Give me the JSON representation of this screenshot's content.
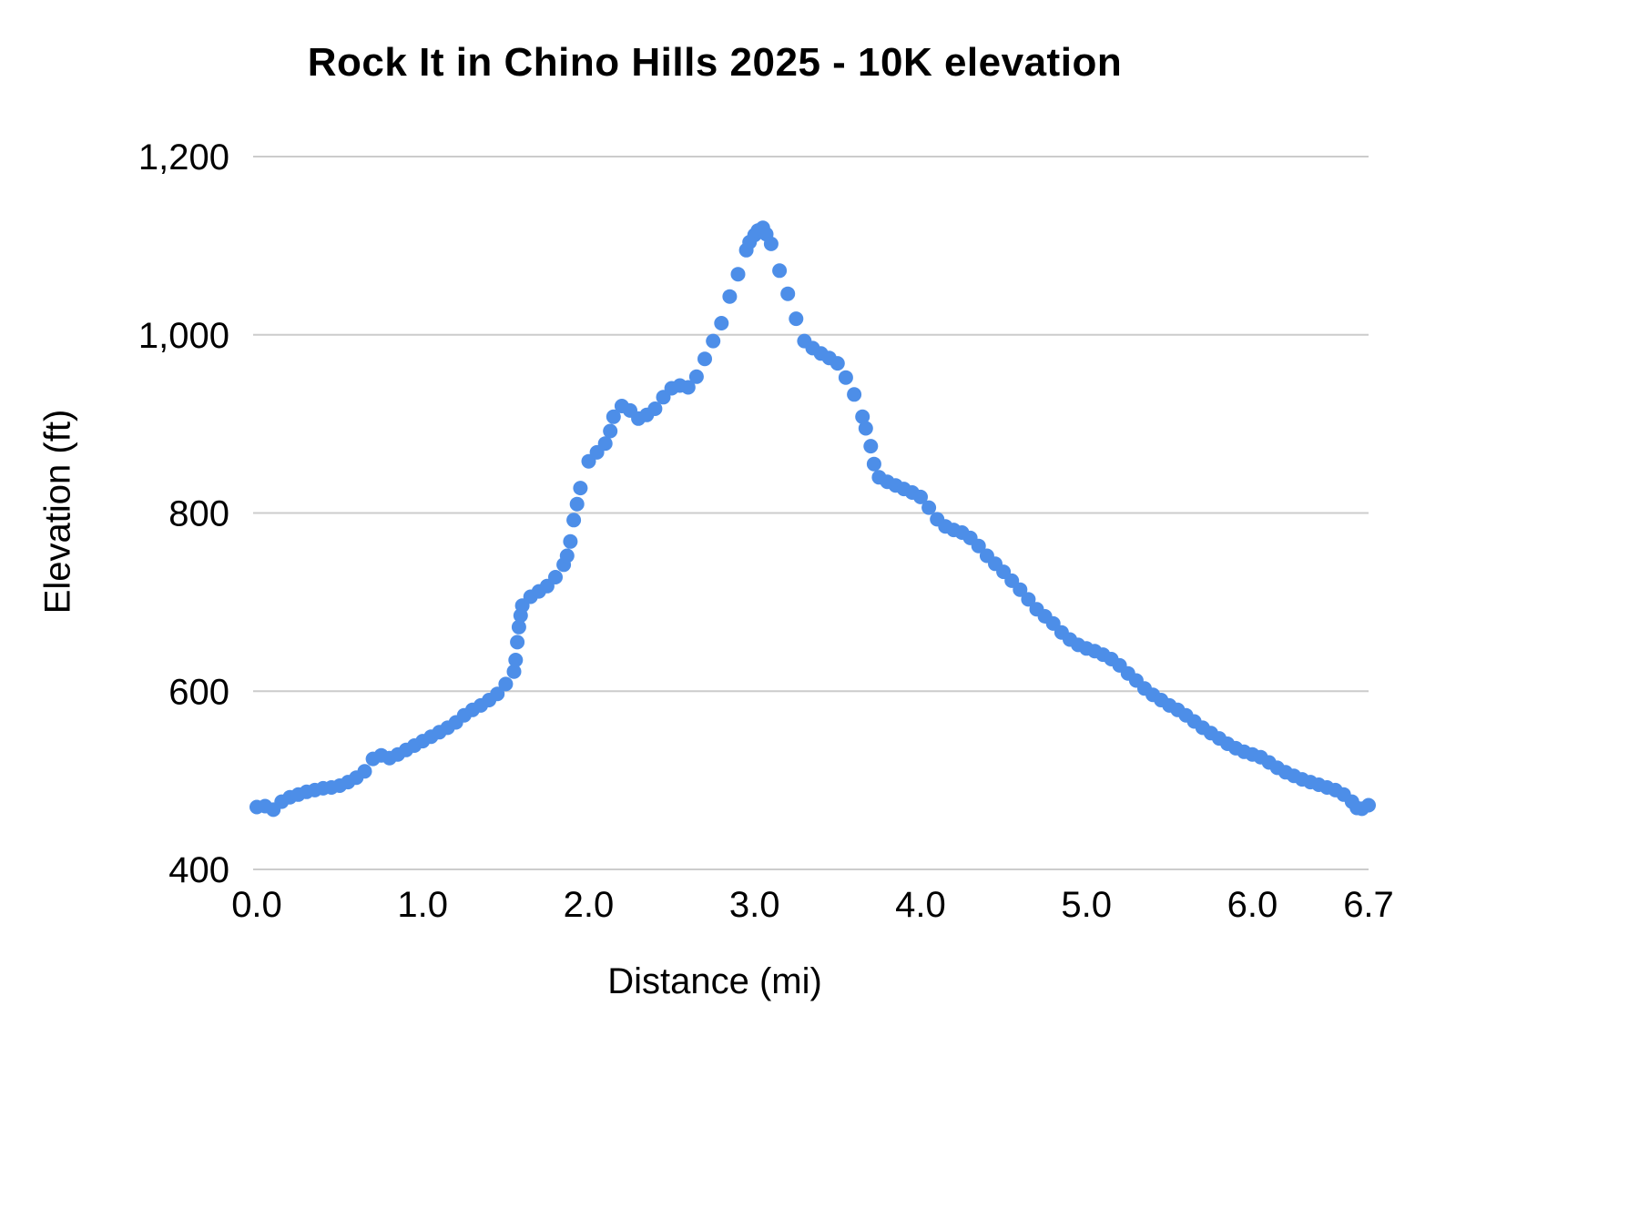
{
  "chart_data": {
    "type": "scatter",
    "title": "Rock It in Chino Hills 2025 - 10K elevation",
    "xlabel": "Distance (mi)",
    "ylabel": "Elevation (ft)",
    "xlim": [
      0,
      6.7
    ],
    "ylim": [
      400,
      1200
    ],
    "legend": "none",
    "grid": "horizontal-only",
    "layout_hints": "dense round blue markers forming a continuous elevation profile line; horizontal gray gridlines at each y tick; no vertical gridlines",
    "colors": {
      "series": "#4d8ee8",
      "gridline": "#cccccc",
      "text": "#000000"
    },
    "x_ticks": [
      {
        "value": 0.0,
        "label": "0.0"
      },
      {
        "value": 1.0,
        "label": "1.0"
      },
      {
        "value": 2.0,
        "label": "2.0"
      },
      {
        "value": 3.0,
        "label": "3.0"
      },
      {
        "value": 4.0,
        "label": "4.0"
      },
      {
        "value": 5.0,
        "label": "5.0"
      },
      {
        "value": 6.0,
        "label": "6.0"
      },
      {
        "value": 6.7,
        "label": "6.7"
      }
    ],
    "y_ticks": [
      {
        "value": 400,
        "label": "400"
      },
      {
        "value": 600,
        "label": "600"
      },
      {
        "value": 800,
        "label": "800"
      },
      {
        "value": 1000,
        "label": "1,000"
      },
      {
        "value": 1200,
        "label": "1,200"
      }
    ],
    "series_name": "Elevation",
    "points": [
      [
        0.0,
        470
      ],
      [
        0.05,
        471
      ],
      [
        0.1,
        467
      ],
      [
        0.15,
        476
      ],
      [
        0.2,
        481
      ],
      [
        0.25,
        484
      ],
      [
        0.3,
        487
      ],
      [
        0.35,
        489
      ],
      [
        0.4,
        491
      ],
      [
        0.45,
        492
      ],
      [
        0.5,
        494
      ],
      [
        0.55,
        498
      ],
      [
        0.6,
        503
      ],
      [
        0.65,
        510
      ],
      [
        0.7,
        524
      ],
      [
        0.75,
        528
      ],
      [
        0.8,
        525
      ],
      [
        0.85,
        529
      ],
      [
        0.9,
        534
      ],
      [
        0.95,
        539
      ],
      [
        1.0,
        544
      ],
      [
        1.05,
        549
      ],
      [
        1.1,
        554
      ],
      [
        1.15,
        559
      ],
      [
        1.2,
        565
      ],
      [
        1.25,
        573
      ],
      [
        1.3,
        579
      ],
      [
        1.35,
        584
      ],
      [
        1.4,
        590
      ],
      [
        1.45,
        597
      ],
      [
        1.5,
        608
      ],
      [
        1.55,
        622
      ],
      [
        1.56,
        635
      ],
      [
        1.57,
        655
      ],
      [
        1.58,
        672
      ],
      [
        1.59,
        685
      ],
      [
        1.6,
        696
      ],
      [
        1.65,
        706
      ],
      [
        1.7,
        712
      ],
      [
        1.75,
        718
      ],
      [
        1.8,
        728
      ],
      [
        1.85,
        742
      ],
      [
        1.87,
        752
      ],
      [
        1.89,
        768
      ],
      [
        1.91,
        792
      ],
      [
        1.93,
        810
      ],
      [
        1.95,
        828
      ],
      [
        2.0,
        858
      ],
      [
        2.05,
        868
      ],
      [
        2.1,
        878
      ],
      [
        2.13,
        892
      ],
      [
        2.15,
        908
      ],
      [
        2.2,
        920
      ],
      [
        2.25,
        915
      ],
      [
        2.3,
        906
      ],
      [
        2.35,
        910
      ],
      [
        2.4,
        917
      ],
      [
        2.45,
        930
      ],
      [
        2.5,
        940
      ],
      [
        2.55,
        943
      ],
      [
        2.6,
        941
      ],
      [
        2.65,
        953
      ],
      [
        2.7,
        973
      ],
      [
        2.75,
        993
      ],
      [
        2.8,
        1013
      ],
      [
        2.85,
        1043
      ],
      [
        2.9,
        1068
      ],
      [
        2.95,
        1095
      ],
      [
        2.97,
        1104
      ],
      [
        3.0,
        1112
      ],
      [
        3.02,
        1117
      ],
      [
        3.05,
        1120
      ],
      [
        3.07,
        1113
      ],
      [
        3.1,
        1102
      ],
      [
        3.15,
        1072
      ],
      [
        3.2,
        1046
      ],
      [
        3.25,
        1018
      ],
      [
        3.3,
        993
      ],
      [
        3.35,
        985
      ],
      [
        3.4,
        979
      ],
      [
        3.45,
        974
      ],
      [
        3.5,
        968
      ],
      [
        3.55,
        952
      ],
      [
        3.6,
        933
      ],
      [
        3.65,
        908
      ],
      [
        3.67,
        895
      ],
      [
        3.7,
        875
      ],
      [
        3.72,
        855
      ],
      [
        3.75,
        840
      ],
      [
        3.8,
        835
      ],
      [
        3.85,
        831
      ],
      [
        3.9,
        827
      ],
      [
        3.95,
        823
      ],
      [
        4.0,
        818
      ],
      [
        4.05,
        806
      ],
      [
        4.1,
        793
      ],
      [
        4.15,
        785
      ],
      [
        4.2,
        781
      ],
      [
        4.25,
        778
      ],
      [
        4.3,
        772
      ],
      [
        4.35,
        763
      ],
      [
        4.4,
        752
      ],
      [
        4.45,
        743
      ],
      [
        4.5,
        734
      ],
      [
        4.55,
        724
      ],
      [
        4.6,
        714
      ],
      [
        4.65,
        703
      ],
      [
        4.7,
        692
      ],
      [
        4.75,
        684
      ],
      [
        4.8,
        676
      ],
      [
        4.85,
        666
      ],
      [
        4.9,
        658
      ],
      [
        4.95,
        652
      ],
      [
        5.0,
        648
      ],
      [
        5.05,
        645
      ],
      [
        5.1,
        641
      ],
      [
        5.15,
        636
      ],
      [
        5.2,
        629
      ],
      [
        5.25,
        620
      ],
      [
        5.3,
        612
      ],
      [
        5.35,
        603
      ],
      [
        5.4,
        596
      ],
      [
        5.45,
        590
      ],
      [
        5.5,
        584
      ],
      [
        5.55,
        579
      ],
      [
        5.6,
        573
      ],
      [
        5.65,
        566
      ],
      [
        5.7,
        559
      ],
      [
        5.75,
        553
      ],
      [
        5.8,
        547
      ],
      [
        5.85,
        541
      ],
      [
        5.9,
        536
      ],
      [
        5.95,
        532
      ],
      [
        6.0,
        529
      ],
      [
        6.05,
        526
      ],
      [
        6.1,
        520
      ],
      [
        6.15,
        514
      ],
      [
        6.2,
        509
      ],
      [
        6.25,
        505
      ],
      [
        6.3,
        501
      ],
      [
        6.35,
        498
      ],
      [
        6.4,
        495
      ],
      [
        6.45,
        492
      ],
      [
        6.5,
        489
      ],
      [
        6.55,
        484
      ],
      [
        6.6,
        476
      ],
      [
        6.63,
        469
      ],
      [
        6.66,
        468
      ],
      [
        6.7,
        472
      ]
    ]
  }
}
